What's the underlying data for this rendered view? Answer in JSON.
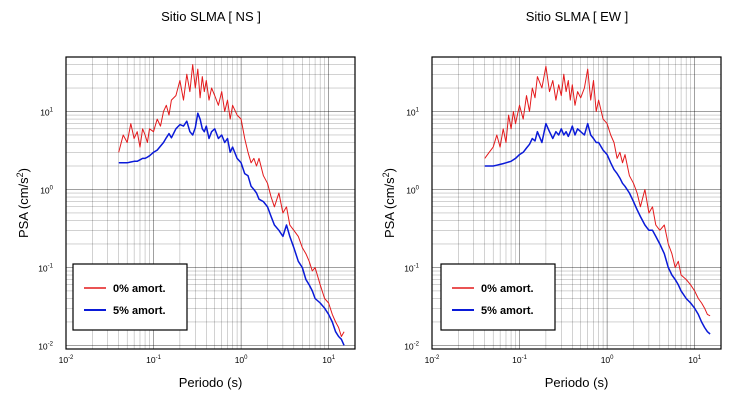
{
  "chart_data": [
    {
      "type": "line",
      "title": "Sitio SLMA [ NS ]",
      "xlabel": "Periodo (s)",
      "ylabel": "PSA (cm/s",
      "ylabel_sup": "2",
      "ylabel_close": ")",
      "x_scale": "log",
      "y_scale": "log",
      "xlim": [
        0.01,
        20
      ],
      "ylim": [
        0.009,
        50
      ],
      "x_ticks": [
        0.01,
        0.1,
        1,
        10
      ],
      "x_tick_labels": [
        [
          "10",
          "-2"
        ],
        [
          "10",
          "-1"
        ],
        [
          "10",
          "0"
        ],
        [
          "10",
          "1"
        ]
      ],
      "y_ticks": [
        0.01,
        0.1,
        1,
        10
      ],
      "y_tick_labels": [
        [
          "10",
          "-2"
        ],
        [
          "10",
          "-1"
        ],
        [
          "10",
          "0"
        ],
        [
          "10",
          "1"
        ]
      ],
      "grid": true,
      "legend_position": "bottom-left",
      "series": [
        {
          "name": "0% amort.",
          "color": "#e41a1c",
          "x": [
            0.04,
            0.045,
            0.05,
            0.055,
            0.06,
            0.065,
            0.07,
            0.075,
            0.08,
            0.085,
            0.09,
            0.1,
            0.11,
            0.12,
            0.13,
            0.14,
            0.15,
            0.16,
            0.18,
            0.2,
            0.22,
            0.24,
            0.26,
            0.28,
            0.3,
            0.32,
            0.34,
            0.36,
            0.38,
            0.4,
            0.43,
            0.46,
            0.5,
            0.55,
            0.6,
            0.65,
            0.7,
            0.75,
            0.8,
            0.9,
            1.0,
            1.1,
            1.2,
            1.3,
            1.4,
            1.5,
            1.6,
            1.8,
            2.0,
            2.2,
            2.4,
            2.7,
            3.0,
            3.3,
            3.6,
            4.0,
            4.5,
            5.0,
            5.5,
            6.0,
            6.5,
            7.0,
            8.0,
            9.0,
            10.0,
            11.0,
            12.0,
            13.0,
            14.0,
            15.0
          ],
          "values": [
            3.0,
            5.0,
            4.0,
            7.0,
            4.5,
            5.5,
            3.5,
            6.0,
            5.0,
            4.0,
            6.0,
            5.5,
            8.0,
            6.5,
            10.0,
            12.0,
            9.0,
            14.0,
            16.0,
            25.0,
            14.0,
            30.0,
            18.0,
            40.0,
            20.0,
            35.0,
            15.0,
            28.0,
            18.0,
            25.0,
            14.0,
            20.0,
            16.0,
            12.0,
            18.0,
            10.0,
            14.0,
            8.0,
            12.0,
            9.0,
            8.0,
            4.5,
            3.0,
            2.2,
            2.5,
            2.0,
            2.5,
            1.5,
            1.2,
            0.8,
            0.6,
            0.9,
            0.5,
            0.6,
            0.35,
            0.3,
            0.25,
            0.18,
            0.15,
            0.12,
            0.09,
            0.1,
            0.06,
            0.04,
            0.035,
            0.025,
            0.02,
            0.017,
            0.013,
            0.015
          ]
        },
        {
          "name": "5% amort.",
          "color": "#0a1ad8",
          "x": [
            0.04,
            0.045,
            0.05,
            0.055,
            0.06,
            0.065,
            0.07,
            0.075,
            0.08,
            0.085,
            0.09,
            0.1,
            0.11,
            0.12,
            0.13,
            0.14,
            0.15,
            0.16,
            0.18,
            0.2,
            0.22,
            0.24,
            0.26,
            0.28,
            0.3,
            0.32,
            0.34,
            0.36,
            0.38,
            0.4,
            0.43,
            0.46,
            0.5,
            0.55,
            0.6,
            0.65,
            0.7,
            0.75,
            0.8,
            0.9,
            1.0,
            1.1,
            1.2,
            1.3,
            1.4,
            1.5,
            1.6,
            1.8,
            2.0,
            2.2,
            2.4,
            2.7,
            3.0,
            3.3,
            3.6,
            4.0,
            4.5,
            5.0,
            5.5,
            6.0,
            6.5,
            7.0,
            8.0,
            9.0,
            10.0,
            11.0,
            12.0,
            13.0,
            14.0,
            15.0
          ],
          "values": [
            2.2,
            2.2,
            2.2,
            2.25,
            2.3,
            2.3,
            2.4,
            2.5,
            2.5,
            2.6,
            2.7,
            3.0,
            3.2,
            3.6,
            4.0,
            4.6,
            5.2,
            4.6,
            6.0,
            6.8,
            6.5,
            7.5,
            5.5,
            5.0,
            6.2,
            9.5,
            8.0,
            6.0,
            5.5,
            6.5,
            4.5,
            5.5,
            6.0,
            4.5,
            5.0,
            4.0,
            4.5,
            3.0,
            3.5,
            2.5,
            2.2,
            1.6,
            1.5,
            1.1,
            1.0,
            0.9,
            0.75,
            0.7,
            0.6,
            0.45,
            0.35,
            0.3,
            0.25,
            0.35,
            0.25,
            0.18,
            0.12,
            0.1,
            0.07,
            0.06,
            0.05,
            0.04,
            0.035,
            0.03,
            0.025,
            0.02,
            0.015,
            0.013,
            0.012,
            0.01
          ]
        }
      ]
    },
    {
      "type": "line",
      "title": "Sitio SLMA [ EW ]",
      "xlabel": "Periodo (s)",
      "ylabel": "PSA (cm/s",
      "ylabel_sup": "2",
      "ylabel_close": ")",
      "x_scale": "log",
      "y_scale": "log",
      "xlim": [
        0.01,
        20
      ],
      "ylim": [
        0.009,
        50
      ],
      "x_ticks": [
        0.01,
        0.1,
        1,
        10
      ],
      "x_tick_labels": [
        [
          "10",
          "-2"
        ],
        [
          "10",
          "-1"
        ],
        [
          "10",
          "0"
        ],
        [
          "10",
          "1"
        ]
      ],
      "y_ticks": [
        0.01,
        0.1,
        1,
        10
      ],
      "y_tick_labels": [
        [
          "10",
          "-2"
        ],
        [
          "10",
          "-1"
        ],
        [
          "10",
          "0"
        ],
        [
          "10",
          "1"
        ]
      ],
      "grid": true,
      "legend_position": "bottom-left",
      "series": [
        {
          "name": "0% amort.",
          "color": "#e41a1c",
          "x": [
            0.04,
            0.045,
            0.05,
            0.055,
            0.06,
            0.065,
            0.07,
            0.075,
            0.08,
            0.085,
            0.09,
            0.1,
            0.11,
            0.12,
            0.13,
            0.14,
            0.15,
            0.16,
            0.18,
            0.2,
            0.22,
            0.24,
            0.26,
            0.28,
            0.3,
            0.32,
            0.34,
            0.36,
            0.38,
            0.4,
            0.43,
            0.46,
            0.5,
            0.55,
            0.6,
            0.65,
            0.7,
            0.75,
            0.8,
            0.9,
            1.0,
            1.1,
            1.2,
            1.3,
            1.4,
            1.5,
            1.6,
            1.8,
            2.0,
            2.2,
            2.4,
            2.7,
            3.0,
            3.3,
            3.6,
            4.0,
            4.5,
            5.0,
            5.5,
            6.0,
            6.5,
            7.0,
            8.0,
            9.0,
            10.0,
            11.0,
            12.0,
            13.0,
            14.0,
            15.0
          ],
          "values": [
            2.5,
            3.0,
            3.5,
            5.0,
            3.5,
            6.0,
            4.0,
            9.0,
            6.0,
            10.0,
            7.0,
            12.0,
            8.0,
            16.0,
            10.0,
            20.0,
            15.0,
            28.0,
            20.0,
            38.0,
            18.0,
            25.0,
            14.0,
            22.0,
            16.0,
            30.0,
            18.0,
            25.0,
            14.0,
            22.0,
            12.0,
            18.0,
            15.0,
            20.0,
            35.0,
            14.0,
            25.0,
            10.0,
            14.0,
            8.0,
            7.0,
            5.0,
            4.0,
            2.5,
            3.0,
            2.2,
            2.8,
            1.5,
            1.2,
            0.9,
            0.6,
            1.0,
            0.5,
            0.6,
            0.35,
            0.3,
            0.35,
            0.2,
            0.15,
            0.1,
            0.12,
            0.08,
            0.07,
            0.06,
            0.05,
            0.04,
            0.035,
            0.03,
            0.025,
            0.024
          ]
        },
        {
          "name": "5% amort.",
          "color": "#0a1ad8",
          "x": [
            0.04,
            0.045,
            0.05,
            0.055,
            0.06,
            0.065,
            0.07,
            0.075,
            0.08,
            0.085,
            0.09,
            0.1,
            0.11,
            0.12,
            0.13,
            0.14,
            0.15,
            0.16,
            0.18,
            0.2,
            0.22,
            0.24,
            0.26,
            0.28,
            0.3,
            0.32,
            0.34,
            0.36,
            0.38,
            0.4,
            0.43,
            0.46,
            0.5,
            0.55,
            0.6,
            0.65,
            0.7,
            0.75,
            0.8,
            0.9,
            1.0,
            1.1,
            1.2,
            1.3,
            1.4,
            1.5,
            1.6,
            1.8,
            2.0,
            2.2,
            2.4,
            2.7,
            3.0,
            3.3,
            3.6,
            4.0,
            4.5,
            5.0,
            5.5,
            6.0,
            6.5,
            7.0,
            8.0,
            9.0,
            10.0,
            11.0,
            12.0,
            13.0,
            14.0,
            15.0
          ],
          "values": [
            2.0,
            2.0,
            2.0,
            2.05,
            2.1,
            2.15,
            2.2,
            2.25,
            2.3,
            2.4,
            2.5,
            2.8,
            3.0,
            3.4,
            3.8,
            4.5,
            4.2,
            5.5,
            4.0,
            7.0,
            5.5,
            4.5,
            5.5,
            5.0,
            6.0,
            5.0,
            5.5,
            4.8,
            5.5,
            6.5,
            5.0,
            6.0,
            5.5,
            5.0,
            7.0,
            5.0,
            4.5,
            4.0,
            4.0,
            3.2,
            2.8,
            2.2,
            1.8,
            1.6,
            1.4,
            1.2,
            1.1,
            0.9,
            0.7,
            0.55,
            0.45,
            0.35,
            0.3,
            0.3,
            0.25,
            0.2,
            0.15,
            0.1,
            0.08,
            0.07,
            0.06,
            0.05,
            0.04,
            0.035,
            0.03,
            0.025,
            0.02,
            0.017,
            0.015,
            0.014
          ]
        }
      ]
    }
  ]
}
